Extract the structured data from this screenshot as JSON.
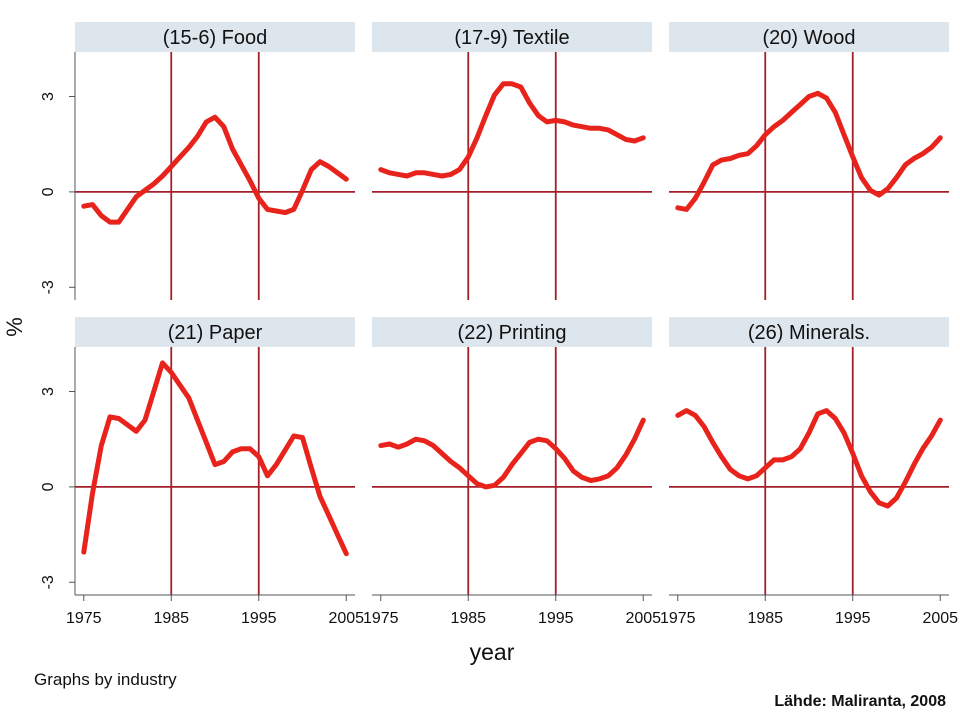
{
  "figure": {
    "ylabel": "%",
    "xlabel": "year",
    "note": "Graphs by industry",
    "source": "Lähde: Maliranta, 2008"
  },
  "colors": {
    "line": "#e8231c",
    "refline": "#a3202a",
    "strip": "#dde6ed",
    "axis": "#555555",
    "text": "#111111"
  },
  "chart_data": {
    "type": "line",
    "xlim": [
      1974,
      2006
    ],
    "ylim": [
      -3.4,
      4.4
    ],
    "x_ticks": [
      1975,
      1985,
      1995,
      2005
    ],
    "x_tick_labels": [
      "1975",
      "1985",
      "1995",
      "2005"
    ],
    "y_ticks": [
      -3,
      0,
      3
    ],
    "y_tick_labels": [
      "-3",
      "0",
      "3"
    ],
    "vertical_reflines": [
      1985,
      1995
    ],
    "horizontal_refline": 0,
    "panels": [
      {
        "title": "(15-6) Food",
        "x": [
          1975,
          1976,
          1977,
          1978,
          1979,
          1980,
          1981,
          1982,
          1983,
          1984,
          1985,
          1986,
          1987,
          1988,
          1989,
          1990,
          1991,
          1992,
          1993,
          1994,
          1995,
          1996,
          1997,
          1998,
          1999,
          2000,
          2001,
          2002,
          2003,
          2004,
          2005
        ],
        "y": [
          -0.45,
          -0.4,
          -0.75,
          -0.95,
          -0.95,
          -0.55,
          -0.15,
          0.05,
          0.25,
          0.5,
          0.8,
          1.1,
          1.4,
          1.75,
          2.2,
          2.35,
          2.05,
          1.35,
          0.85,
          0.35,
          -0.2,
          -0.55,
          -0.6,
          -0.65,
          -0.55,
          0.05,
          0.7,
          0.95,
          0.8,
          0.6,
          0.4
        ]
      },
      {
        "title": "(17-9) Textile",
        "x": [
          1975,
          1976,
          1977,
          1978,
          1979,
          1980,
          1981,
          1982,
          1983,
          1984,
          1985,
          1986,
          1987,
          1988,
          1989,
          1990,
          1991,
          1992,
          1993,
          1994,
          1995,
          1996,
          1997,
          1998,
          1999,
          2000,
          2001,
          2002,
          2003,
          2004,
          2005
        ],
        "y": [
          0.7,
          0.6,
          0.55,
          0.5,
          0.6,
          0.6,
          0.55,
          0.5,
          0.55,
          0.7,
          1.1,
          1.7,
          2.4,
          3.05,
          3.4,
          3.4,
          3.3,
          2.8,
          2.4,
          2.2,
          2.25,
          2.2,
          2.1,
          2.05,
          2.0,
          2.0,
          1.95,
          1.8,
          1.65,
          1.6,
          1.7
        ]
      },
      {
        "title": "(20) Wood",
        "x": [
          1975,
          1976,
          1977,
          1978,
          1979,
          1980,
          1981,
          1982,
          1983,
          1984,
          1985,
          1986,
          1987,
          1988,
          1989,
          1990,
          1991,
          1992,
          1993,
          1994,
          1995,
          1996,
          1997,
          1998,
          1999,
          2000,
          2001,
          2002,
          2003,
          2004,
          2005
        ],
        "y": [
          -0.5,
          -0.55,
          -0.2,
          0.3,
          0.85,
          1.0,
          1.05,
          1.15,
          1.2,
          1.45,
          1.8,
          2.05,
          2.25,
          2.5,
          2.75,
          3.0,
          3.1,
          2.95,
          2.5,
          1.8,
          1.1,
          0.45,
          0.05,
          -0.1,
          0.1,
          0.45,
          0.85,
          1.05,
          1.2,
          1.4,
          1.7
        ]
      },
      {
        "title": "(21) Paper",
        "x": [
          1975,
          1976,
          1977,
          1978,
          1979,
          1980,
          1981,
          1982,
          1983,
          1984,
          1985,
          1986,
          1987,
          1988,
          1989,
          1990,
          1991,
          1992,
          1993,
          1994,
          1995,
          1996,
          1997,
          1998,
          1999,
          2000,
          2001,
          2002,
          2003,
          2004,
          2005
        ],
        "y": [
          -2.05,
          -0.2,
          1.3,
          2.2,
          2.15,
          1.95,
          1.75,
          2.1,
          3.0,
          3.9,
          3.6,
          3.2,
          2.8,
          2.1,
          1.4,
          0.7,
          0.8,
          1.1,
          1.2,
          1.2,
          0.95,
          0.35,
          0.7,
          1.15,
          1.6,
          1.55,
          0.6,
          -0.3,
          -0.9,
          -1.5,
          -2.1
        ]
      },
      {
        "title": "(22) Printing",
        "x": [
          1975,
          1976,
          1977,
          1978,
          1979,
          1980,
          1981,
          1982,
          1983,
          1984,
          1985,
          1986,
          1987,
          1988,
          1989,
          1990,
          1991,
          1992,
          1993,
          1994,
          1995,
          1996,
          1997,
          1998,
          1999,
          2000,
          2001,
          2002,
          2003,
          2004,
          2005
        ],
        "y": [
          1.3,
          1.35,
          1.25,
          1.35,
          1.5,
          1.45,
          1.3,
          1.05,
          0.8,
          0.6,
          0.35,
          0.1,
          0.0,
          0.05,
          0.3,
          0.7,
          1.05,
          1.4,
          1.5,
          1.45,
          1.2,
          0.9,
          0.5,
          0.3,
          0.2,
          0.25,
          0.35,
          0.6,
          1.0,
          1.5,
          2.1
        ]
      },
      {
        "title": "(26) Minerals.",
        "x": [
          1975,
          1976,
          1977,
          1978,
          1979,
          1980,
          1981,
          1982,
          1983,
          1984,
          1985,
          1986,
          1987,
          1988,
          1989,
          1990,
          1991,
          1992,
          1993,
          1994,
          1995,
          1996,
          1997,
          1998,
          1999,
          2000,
          2001,
          2002,
          2003,
          2004,
          2005
        ],
        "y": [
          2.25,
          2.4,
          2.25,
          1.9,
          1.4,
          0.95,
          0.55,
          0.35,
          0.25,
          0.35,
          0.6,
          0.85,
          0.85,
          0.95,
          1.2,
          1.7,
          2.3,
          2.4,
          2.15,
          1.7,
          1.05,
          0.35,
          -0.15,
          -0.5,
          -0.6,
          -0.35,
          0.15,
          0.7,
          1.2,
          1.6,
          2.1
        ]
      }
    ]
  }
}
